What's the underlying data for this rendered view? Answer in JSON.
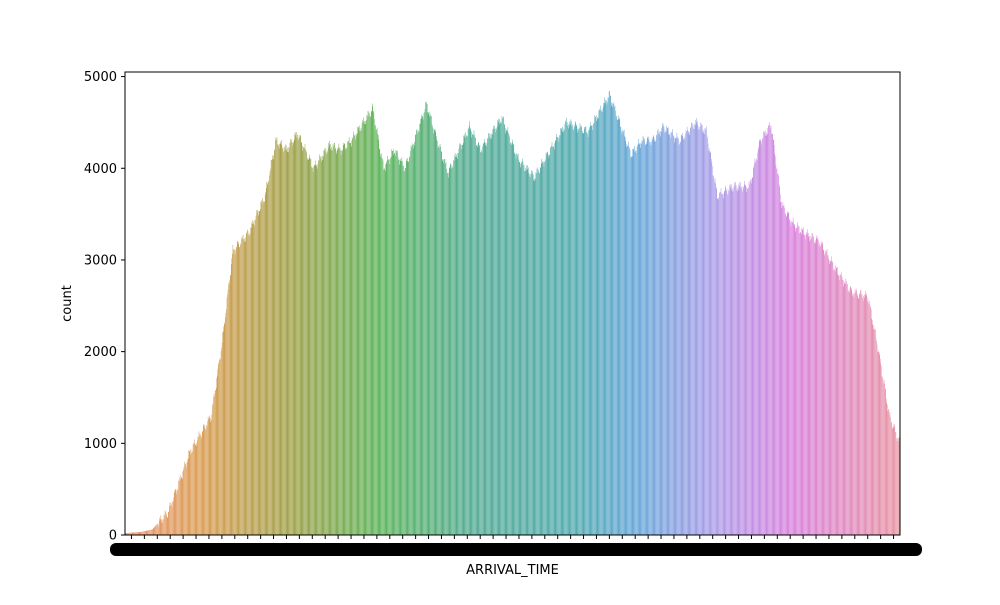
{
  "chart_data": {
    "type": "bar",
    "title": "",
    "xlabel": "ARRIVAL_TIME",
    "ylabel": "count",
    "ylim": [
      0,
      5050
    ],
    "yticks": [
      0,
      1000,
      2000,
      3000,
      4000,
      5000
    ],
    "x_tick_labels_overlapping": true,
    "bar_count": 1440,
    "palette": "husl-gradient",
    "profile": {
      "description_hidden": true,
      "approx_index": [
        0,
        10,
        30,
        50,
        80,
        120,
        160,
        180,
        200,
        230,
        260,
        280,
        300,
        320,
        350,
        380,
        400,
        420,
        460,
        480,
        500,
        520,
        560,
        580,
        600,
        640,
        660,
        700,
        730,
        760,
        790,
        820,
        860,
        900,
        940,
        960,
        980,
        1000,
        1030,
        1060,
        1080,
        1100,
        1130,
        1160,
        1180,
        1200,
        1220,
        1240,
        1260,
        1290,
        1320,
        1350,
        1380,
        1400,
        1420,
        1439
      ],
      "approx_value": [
        20,
        25,
        35,
        60,
        250,
        900,
        1300,
        2100,
        3100,
        3300,
        3700,
        4300,
        4200,
        4380,
        4000,
        4250,
        4200,
        4300,
        4650,
        4000,
        4200,
        4000,
        4700,
        4300,
        3950,
        4450,
        4200,
        4550,
        4100,
        3900,
        4200,
        4500,
        4400,
        4800,
        4150,
        4300,
        4300,
        4450,
        4300,
        4500,
        4400,
        3700,
        3800,
        3800,
        4300,
        4480,
        3600,
        3400,
        3300,
        3200,
        2900,
        2650,
        2600,
        2000,
        1300,
        1000
      ]
    }
  }
}
